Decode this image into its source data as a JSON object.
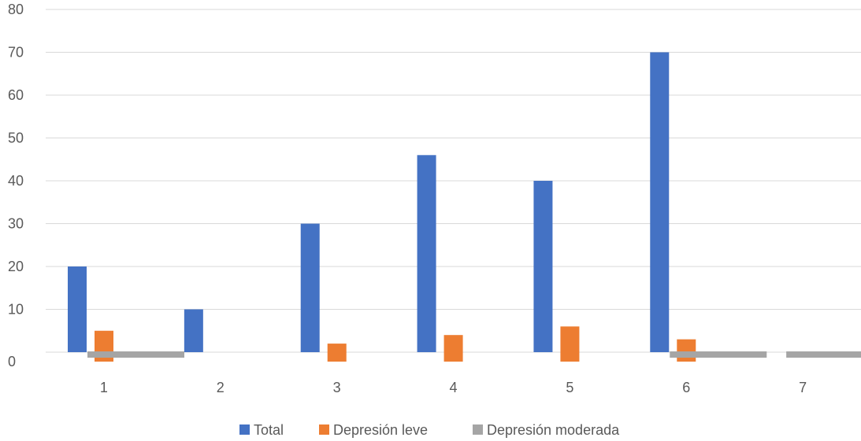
{
  "chart_data": {
    "type": "bar",
    "categories": [
      "1",
      "2",
      "3",
      "4",
      "5",
      "6",
      "7"
    ],
    "series": [
      {
        "name": "Total",
        "color": "#4472C4",
        "values": [
          20,
          10,
          30,
          46,
          40,
          70,
          null
        ]
      },
      {
        "name": "Depresión leve",
        "color": "#ED7D31",
        "values": [
          5,
          null,
          2,
          4,
          6,
          3,
          null
        ]
      },
      {
        "name": "Depresión moderada",
        "color": "#A5A5A5",
        "values": [
          -1,
          null,
          null,
          null,
          null,
          -1,
          -1
        ]
      }
    ],
    "y_ticks": [
      "0",
      "10",
      "20",
      "30",
      "40",
      "50",
      "60",
      "70",
      "80"
    ],
    "ylim": [
      0,
      80
    ],
    "grid": true,
    "legend_position": "bottom"
  }
}
